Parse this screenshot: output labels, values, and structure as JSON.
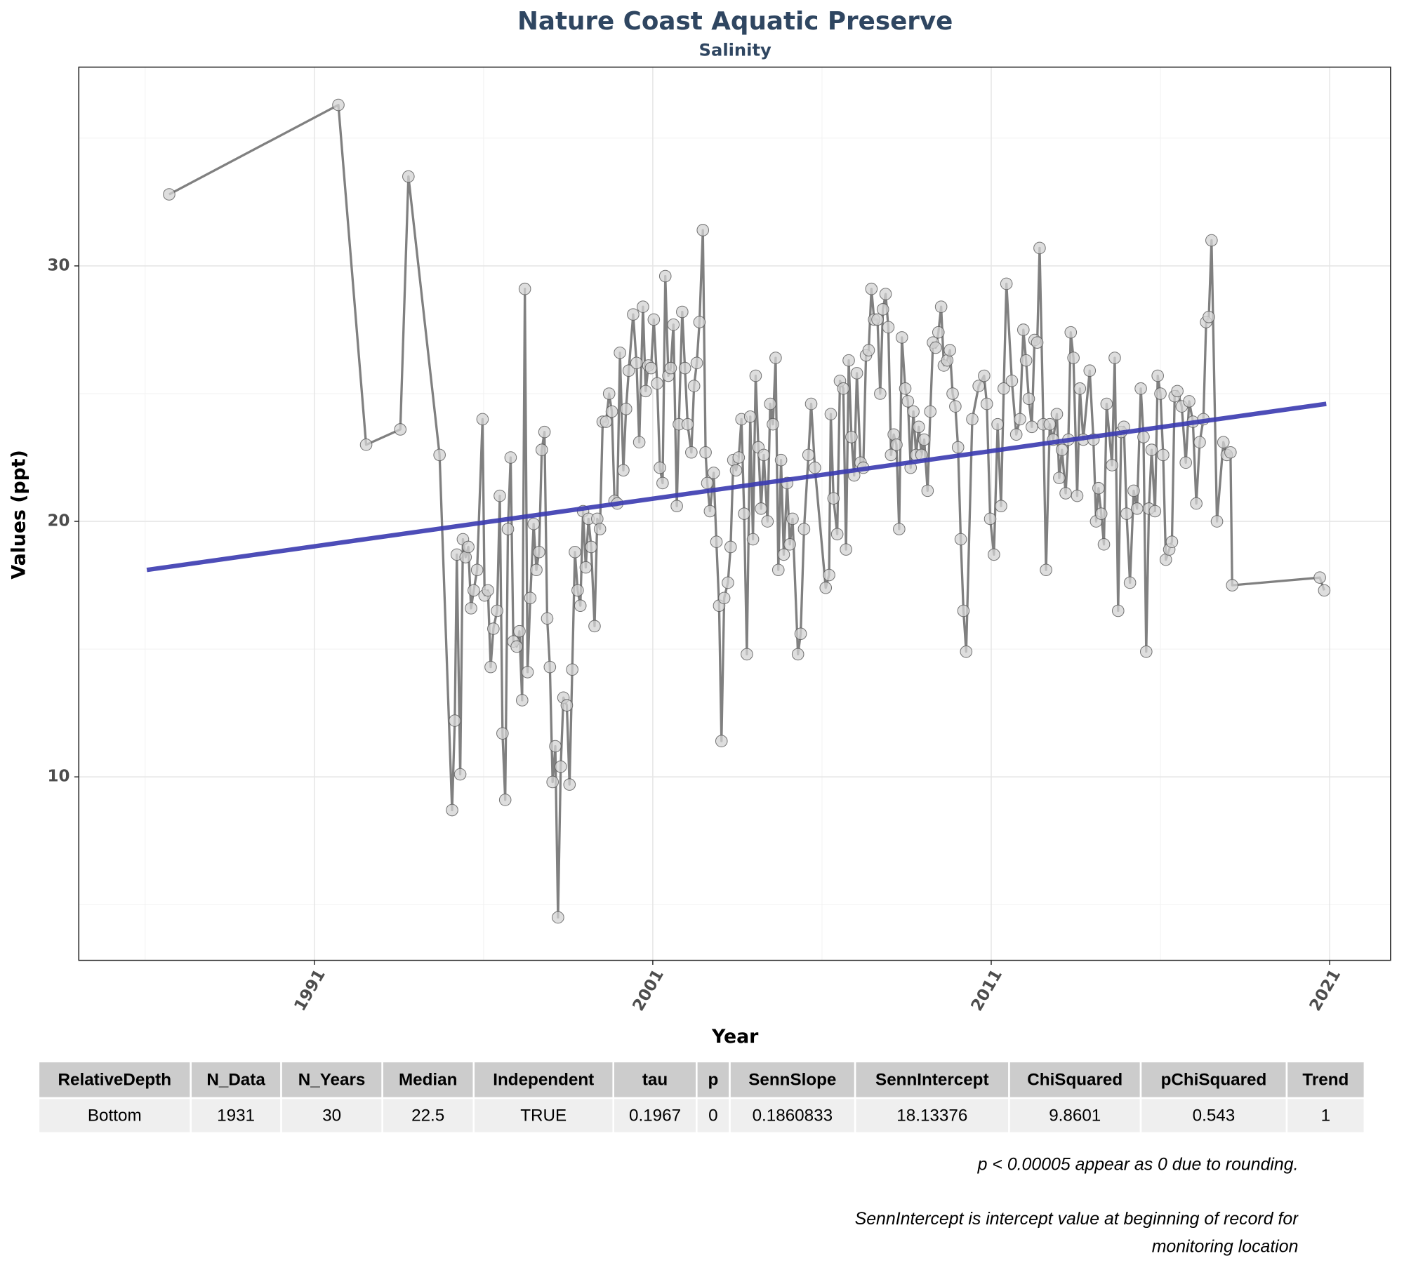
{
  "chart_data": {
    "type": "line",
    "title": "Nature Coast Aquatic Preserve",
    "subtitle": "Salinity",
    "xlabel": "Year",
    "ylabel": "Values (ppt)",
    "xlim": [
      1984.04,
      2022.8
    ],
    "ylim": [
      2.82,
      37.78
    ],
    "xticks": [
      1991,
      2001,
      2011,
      2021
    ],
    "yticks": [
      10,
      20,
      30
    ],
    "x_minor_ticks": [
      1986,
      1996,
      2006,
      2016
    ],
    "y_minor_ticks": [
      5,
      15,
      25,
      35
    ],
    "grid": true,
    "series": [
      {
        "color": "#808080",
        "marker_color": "#d3d3d3",
        "x": [
          1986.71,
          1991.71,
          1992.53,
          1993.54,
          1993.78,
          1994.7,
          1995.07,
          1995.15,
          1995.21,
          1995.31,
          1995.39,
          1995.47,
          1995.55,
          1995.63,
          1995.71,
          1995.81,
          1995.97,
          1996.03,
          1996.13,
          1996.21,
          1996.29,
          1996.4,
          1996.48,
          1996.56,
          1996.64,
          1996.72,
          1996.8,
          1996.88,
          1996.98,
          1997.06,
          1997.14,
          1997.22,
          1997.3,
          1997.38,
          1997.48,
          1997.56,
          1997.64,
          1997.72,
          1997.8,
          1997.88,
          1997.96,
          1998.04,
          1998.12,
          1998.2,
          1998.28,
          1998.36,
          1998.46,
          1998.54,
          1998.62,
          1998.7,
          1998.78,
          1998.86,
          1998.94,
          1999.02,
          1999.1,
          1999.18,
          1999.28,
          1999.36,
          1999.44,
          1999.52,
          1999.62,
          1999.71,
          1999.79,
          1999.87,
          1999.95,
          2000.03,
          2000.13,
          2000.21,
          2000.29,
          2000.42,
          2000.52,
          2000.6,
          2000.71,
          2000.79,
          2000.87,
          2000.95,
          2001.03,
          2001.13,
          2001.21,
          2001.29,
          2001.37,
          2001.46,
          2001.53,
          2001.61,
          2001.71,
          2001.77,
          2001.87,
          2001.95,
          2002.03,
          2002.14,
          2002.22,
          2002.3,
          2002.38,
          2002.48,
          2002.56,
          2002.61,
          2002.69,
          2002.8,
          2002.88,
          2002.96,
          2003.03,
          2003.11,
          2003.22,
          2003.3,
          2003.38,
          2003.46,
          2003.54,
          2003.62,
          2003.7,
          2003.78,
          2003.88,
          2003.96,
          2004.04,
          2004.12,
          2004.2,
          2004.28,
          2004.39,
          2004.47,
          2004.55,
          2004.63,
          2004.71,
          2004.79,
          2004.87,
          2004.97,
          2005.05,
          2005.13,
          2005.29,
          2005.37,
          2005.47,
          2005.6,
          2005.68,
          2005.79,
          2006.11,
          2006.21,
          2006.26,
          2006.34,
          2006.45,
          2006.53,
          2006.63,
          2006.71,
          2006.79,
          2006.87,
          2006.95,
          2007.03,
          2007.14,
          2007.22,
          2007.3,
          2007.38,
          2007.46,
          2007.54,
          2007.64,
          2007.72,
          2007.8,
          2007.88,
          2007.96,
          2008.04,
          2008.12,
          2008.2,
          2008.28,
          2008.36,
          2008.46,
          2008.54,
          2008.62,
          2008.7,
          2008.78,
          2008.86,
          2008.94,
          2009.02,
          2009.12,
          2009.2,
          2009.28,
          2009.36,
          2009.44,
          2009.52,
          2009.6,
          2009.7,
          2009.78,
          2009.86,
          2009.94,
          2010.02,
          2010.1,
          2010.18,
          2010.26,
          2010.44,
          2010.63,
          2010.79,
          2010.87,
          2010.97,
          2011.08,
          2011.19,
          2011.29,
          2011.37,
          2011.45,
          2011.61,
          2011.74,
          2011.85,
          2011.95,
          2012.03,
          2012.11,
          2012.2,
          2012.28,
          2012.36,
          2012.43,
          2012.54,
          2012.62,
          2012.73,
          2012.83,
          2012.94,
          2013.01,
          2013.09,
          2013.2,
          2013.28,
          2013.35,
          2013.43,
          2013.54,
          2013.62,
          2013.72,
          2013.91,
          2014.02,
          2014.1,
          2014.17,
          2014.25,
          2014.33,
          2014.41,
          2014.57,
          2014.65,
          2014.75,
          2014.84,
          2014.92,
          2015.0,
          2015.1,
          2015.21,
          2015.31,
          2015.42,
          2015.5,
          2015.58,
          2015.66,
          2015.74,
          2015.84,
          2015.92,
          2016.0,
          2016.08,
          2016.16,
          2016.26,
          2016.34,
          2016.42,
          2016.5,
          2016.63,
          2016.75,
          2016.85,
          2016.96,
          2017.06,
          2017.16,
          2017.27,
          2017.35,
          2017.43,
          2017.51,
          2017.67,
          2017.86,
          2017.96,
          2018.07,
          2018.12,
          2020.71,
          2020.84
        ],
        "values": [
          32.8,
          36.3,
          23.0,
          23.6,
          33.5,
          22.6,
          8.7,
          12.2,
          18.7,
          10.1,
          19.3,
          18.6,
          19.0,
          16.6,
          17.3,
          18.1,
          24.0,
          17.1,
          17.3,
          14.3,
          15.8,
          16.5,
          21.0,
          11.7,
          9.1,
          19.7,
          22.5,
          15.3,
          15.1,
          15.7,
          13.0,
          29.1,
          14.1,
          17.0,
          19.9,
          18.1,
          18.8,
          22.8,
          23.5,
          16.2,
          14.3,
          9.8,
          11.2,
          4.5,
          10.4,
          13.1,
          12.8,
          9.7,
          14.2,
          18.8,
          17.3,
          16.7,
          20.4,
          18.2,
          20.1,
          19.0,
          15.9,
          20.1,
          19.7,
          23.9,
          23.9,
          25.0,
          24.3,
          20.8,
          20.7,
          26.6,
          22.0,
          24.4,
          25.9,
          28.1,
          26.2,
          23.1,
          28.4,
          25.1,
          26.1,
          26.0,
          27.9,
          25.4,
          22.1,
          21.5,
          29.6,
          25.7,
          26.0,
          27.7,
          20.6,
          23.8,
          28.2,
          26.0,
          23.8,
          22.7,
          25.3,
          26.2,
          27.8,
          31.4,
          22.7,
          21.5,
          20.4,
          21.9,
          19.2,
          16.7,
          11.4,
          17.0,
          17.6,
          19.0,
          22.4,
          22.0,
          22.5,
          24.0,
          20.3,
          14.8,
          24.1,
          19.3,
          25.7,
          22.9,
          20.5,
          22.6,
          20.0,
          24.6,
          23.8,
          26.4,
          18.1,
          22.4,
          18.7,
          21.5,
          19.1,
          20.1,
          14.8,
          15.6,
          19.7,
          22.6,
          24.6,
          22.1,
          17.4,
          17.9,
          24.2,
          20.9,
          19.5,
          25.5,
          25.2,
          18.9,
          26.3,
          23.3,
          21.8,
          25.8,
          22.3,
          22.1,
          26.5,
          26.7,
          29.1,
          27.9,
          27.9,
          25.0,
          28.3,
          28.9,
          27.6,
          22.6,
          23.4,
          23.0,
          19.7,
          27.2,
          25.2,
          24.7,
          22.1,
          24.3,
          22.6,
          23.7,
          22.6,
          23.2,
          21.2,
          24.3,
          27.0,
          26.8,
          27.4,
          28.4,
          26.1,
          26.3,
          26.7,
          25.0,
          24.5,
          22.9,
          19.3,
          16.5,
          14.9,
          24.0,
          25.3,
          25.7,
          24.6,
          20.1,
          18.7,
          23.8,
          20.6,
          25.2,
          29.3,
          25.5,
          23.4,
          24.0,
          27.5,
          26.3,
          24.8,
          23.7,
          27.1,
          27.0,
          30.7,
          23.8,
          18.1,
          23.8,
          23.2,
          24.2,
          21.7,
          22.8,
          21.1,
          23.2,
          27.4,
          26.4,
          21.0,
          25.2,
          23.2,
          25.9,
          23.2,
          20.0,
          21.3,
          20.3,
          19.1,
          24.6,
          22.2,
          26.4,
          16.5,
          23.5,
          23.7,
          20.3,
          17.6,
          21.2,
          20.5,
          25.2,
          23.3,
          14.9,
          20.5,
          22.8,
          20.4,
          25.7,
          25.0,
          22.6,
          18.5,
          18.9,
          19.2,
          24.9,
          25.1,
          24.5,
          22.3,
          24.7,
          23.9,
          20.7,
          23.1,
          24.0,
          27.8,
          28.0,
          31.0,
          20.0,
          23.1,
          22.6,
          22.7,
          17.5,
          17.8,
          17.3
        ]
      }
    ],
    "trend": {
      "color": "#3a3ab0",
      "x": [
        1986.05,
        2020.9
      ],
      "values": [
        18.1,
        24.6
      ]
    }
  },
  "table": {
    "columns": [
      "RelativeDepth",
      "N_Data",
      "N_Years",
      "Median",
      "Independent",
      "tau",
      "p",
      "SennSlope",
      "SennIntercept",
      "ChiSquared",
      "pChiSquared",
      "Trend"
    ],
    "rows": [
      [
        "Bottom",
        1931,
        30,
        22.5,
        "TRUE",
        0.1967,
        0,
        0.1860833,
        18.13376,
        9.8601,
        0.543,
        1
      ]
    ]
  },
  "notes": [
    "p < 0.00005 appear as 0 due to rounding.",
    "SennIntercept is intercept value at beginning of record for monitoring location"
  ]
}
